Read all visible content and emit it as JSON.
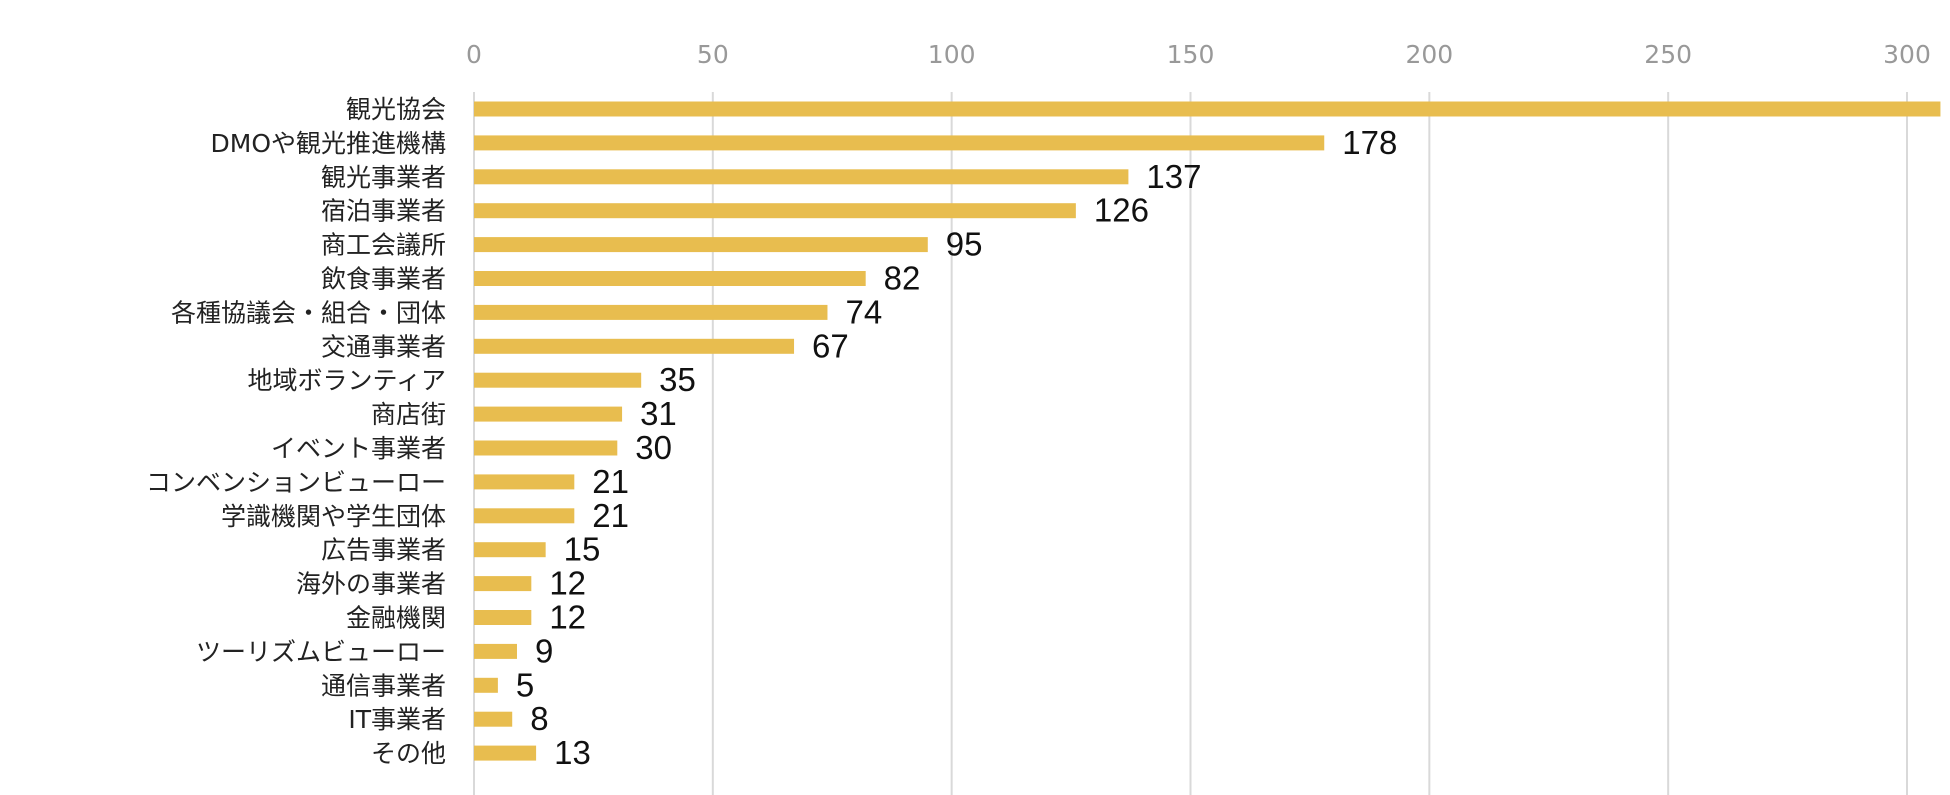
{
  "chart_data": {
    "type": "bar",
    "orientation": "horizontal",
    "title": "",
    "xlabel": "",
    "ylabel": "",
    "xlim": [
      0,
      300
    ],
    "x_ticks": [
      0,
      50,
      100,
      150,
      200,
      250,
      300
    ],
    "grid": true,
    "legend": "none",
    "bar_color": "#e8bd4f",
    "categories": [
      "観光協会",
      "DMOや観光推進機構",
      "観光事業者",
      "宿泊事業者",
      "商工会議所",
      "飲食事業者",
      "各種協議会・組合・団体",
      "交通事業者",
      "地域ボランティア",
      "商店街",
      "イベント事業者",
      "コンベンションビューロー",
      "学識機関や学生団体",
      "広告事業者",
      "海外の事業者",
      "金融機関",
      "ツーリズムビューロー",
      "通信事業者",
      "IT事業者",
      "その他"
    ],
    "values": [
      307,
      178,
      137,
      126,
      95,
      82,
      74,
      67,
      35,
      31,
      30,
      21,
      21,
      15,
      12,
      12,
      9,
      5,
      8,
      13
    ]
  }
}
